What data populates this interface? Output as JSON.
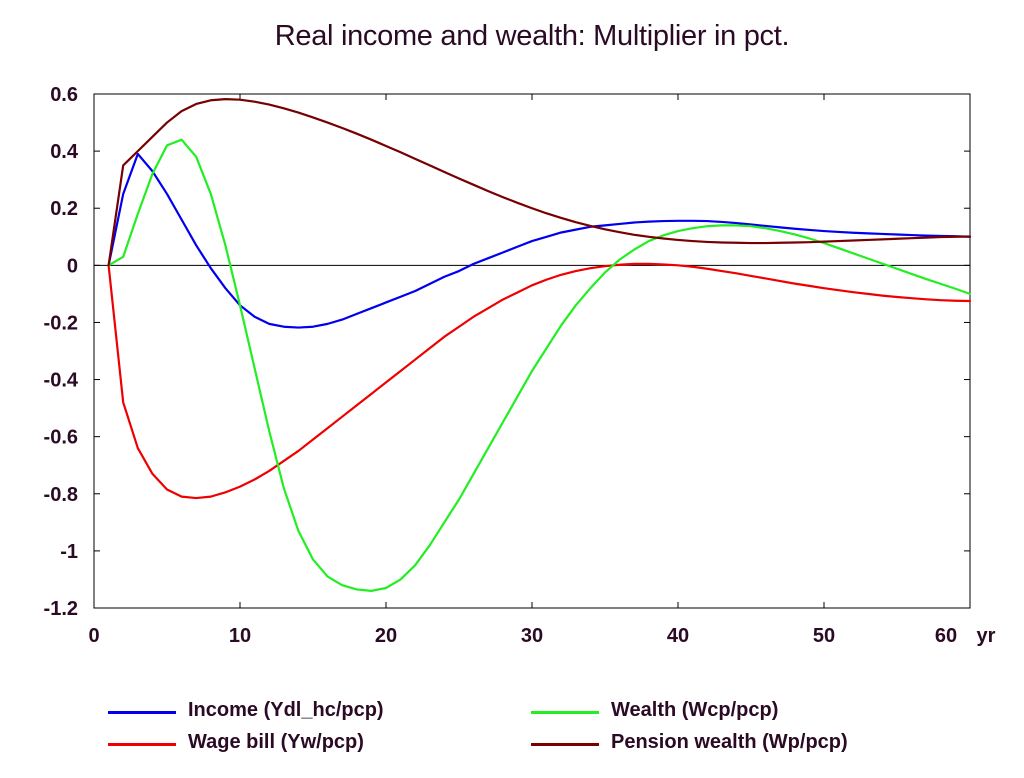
{
  "chart_data": {
    "type": "line",
    "title": "Real income and wealth: Multiplier in pct.",
    "xlabel": "",
    "ylabel": "",
    "x_unit_label": "yr",
    "xlim": [
      0,
      60
    ],
    "ylim": [
      -1.2,
      0.6
    ],
    "x_ticks": [
      0,
      10,
      20,
      30,
      40,
      50,
      60
    ],
    "y_ticks": [
      0.6,
      0.4,
      0.2,
      0,
      -0.2,
      -0.4,
      -0.6,
      -0.8,
      -1,
      -1.2
    ],
    "grid": false,
    "zero_line": true,
    "legend_position": "bottom",
    "x": [
      1,
      2,
      3,
      4,
      5,
      6,
      7,
      8,
      9,
      10,
      11,
      12,
      13,
      14,
      15,
      16,
      17,
      18,
      19,
      20,
      21,
      22,
      23,
      24,
      25,
      26,
      27,
      28,
      29,
      30,
      31,
      32,
      33,
      34,
      35,
      36,
      37,
      38,
      39,
      40,
      41,
      42,
      43,
      44,
      45,
      46,
      47,
      48,
      49,
      50,
      51,
      52,
      53,
      54,
      55,
      56,
      57,
      58,
      59,
      60
    ],
    "series": [
      {
        "name": "Income (Ydl_hc/pcp)",
        "color": "#0000ee",
        "values": [
          0,
          0.25,
          0.39,
          0.33,
          0.25,
          0.16,
          0.07,
          -0.01,
          -0.08,
          -0.14,
          -0.18,
          -0.205,
          -0.215,
          -0.218,
          -0.215,
          -0.205,
          -0.19,
          -0.17,
          -0.15,
          -0.13,
          -0.11,
          -0.09,
          -0.065,
          -0.04,
          -0.02,
          0.005,
          0.025,
          0.045,
          0.065,
          0.085,
          0.1,
          0.115,
          0.125,
          0.135,
          0.14,
          0.145,
          0.15,
          0.153,
          0.155,
          0.156,
          0.156,
          0.155,
          0.152,
          0.148,
          0.143,
          0.138,
          0.133,
          0.128,
          0.124,
          0.12,
          0.117,
          0.114,
          0.112,
          0.11,
          0.108,
          0.106,
          0.104,
          0.103,
          0.102,
          0.1
        ]
      },
      {
        "name": "Wage bill (Yw/pcp)",
        "color": "#ee0000",
        "values": [
          0,
          -0.48,
          -0.64,
          -0.73,
          -0.785,
          -0.81,
          -0.815,
          -0.81,
          -0.795,
          -0.775,
          -0.75,
          -0.72,
          -0.685,
          -0.65,
          -0.61,
          -0.57,
          -0.53,
          -0.49,
          -0.45,
          -0.41,
          -0.37,
          -0.33,
          -0.29,
          -0.25,
          -0.215,
          -0.18,
          -0.15,
          -0.12,
          -0.095,
          -0.07,
          -0.05,
          -0.033,
          -0.02,
          -0.01,
          -0.003,
          0.002,
          0.005,
          0.005,
          0.003,
          0,
          -0.005,
          -0.012,
          -0.02,
          -0.028,
          -0.037,
          -0.046,
          -0.055,
          -0.064,
          -0.072,
          -0.08,
          -0.087,
          -0.094,
          -0.1,
          -0.106,
          -0.111,
          -0.115,
          -0.119,
          -0.122,
          -0.124,
          -0.125
        ]
      },
      {
        "name": "Wealth (Wcp/pcp)",
        "color": "#22ee22",
        "values": [
          0,
          0.03,
          0.18,
          0.32,
          0.42,
          0.44,
          0.38,
          0.25,
          0.07,
          -0.14,
          -0.36,
          -0.58,
          -0.78,
          -0.93,
          -1.03,
          -1.09,
          -1.12,
          -1.135,
          -1.14,
          -1.13,
          -1.1,
          -1.05,
          -0.98,
          -0.9,
          -0.82,
          -0.73,
          -0.64,
          -0.55,
          -0.46,
          -0.37,
          -0.29,
          -0.21,
          -0.14,
          -0.08,
          -0.025,
          0.02,
          0.055,
          0.085,
          0.105,
          0.12,
          0.13,
          0.137,
          0.14,
          0.14,
          0.137,
          0.13,
          0.12,
          0.108,
          0.094,
          0.078,
          0.06,
          0.042,
          0.024,
          0.006,
          -0.012,
          -0.03,
          -0.048,
          -0.065,
          -0.082,
          -0.1
        ]
      },
      {
        "name": "Pension wealth (Wp/pcp)",
        "color": "#770000",
        "values": [
          0,
          0.35,
          0.4,
          0.45,
          0.5,
          0.54,
          0.565,
          0.578,
          0.582,
          0.58,
          0.573,
          0.563,
          0.55,
          0.535,
          0.518,
          0.5,
          0.481,
          0.461,
          0.44,
          0.418,
          0.396,
          0.373,
          0.35,
          0.327,
          0.304,
          0.282,
          0.26,
          0.239,
          0.219,
          0.2,
          0.182,
          0.166,
          0.151,
          0.138,
          0.126,
          0.116,
          0.107,
          0.1,
          0.094,
          0.089,
          0.085,
          0.082,
          0.08,
          0.079,
          0.078,
          0.078,
          0.079,
          0.08,
          0.081,
          0.083,
          0.085,
          0.087,
          0.089,
          0.091,
          0.093,
          0.095,
          0.097,
          0.099,
          0.1,
          0.101
        ]
      }
    ]
  }
}
